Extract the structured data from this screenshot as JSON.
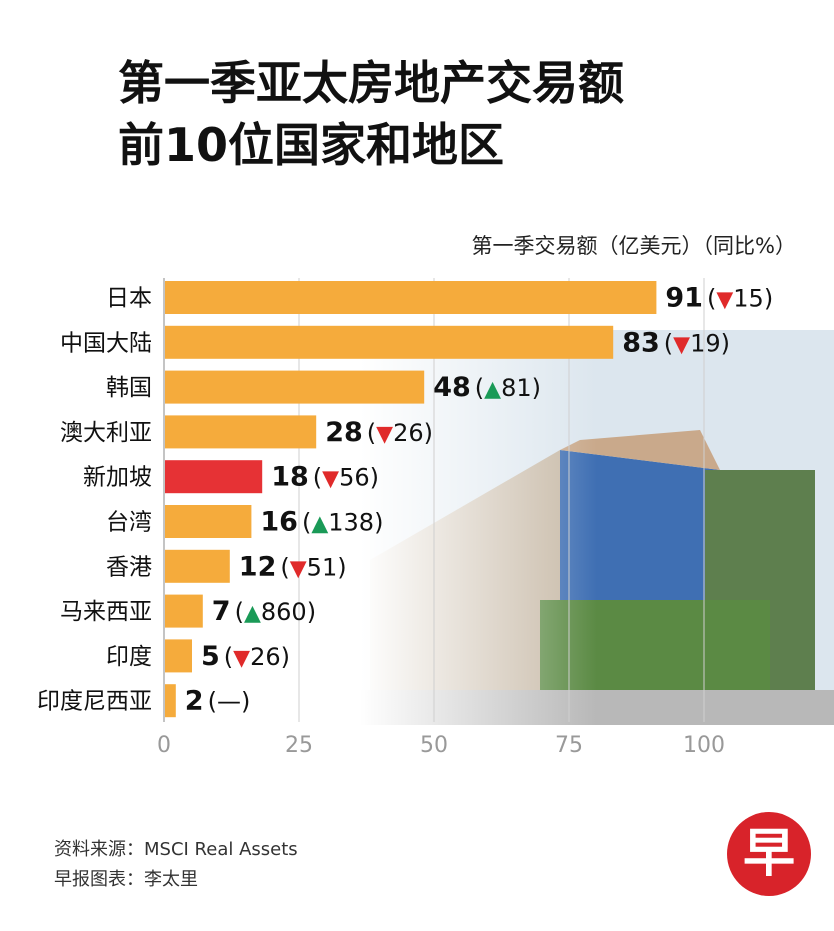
{
  "title_lines": [
    "第一季亚太房地产交易额",
    "前10位国家和地区"
  ],
  "subtitle": "第一季交易额（亿美元）（同比%）",
  "source": "资料来源：MSCI Real Assets",
  "credit": "早报图表：李太里",
  "logo_text": "早",
  "colors": {
    "bar": "#f5ab3c",
    "highlight": "#e63235",
    "up": "#1a9a57",
    "down": "#e02a2a"
  },
  "chart_data": {
    "type": "bar",
    "orientation": "horizontal",
    "title": "第一季亚太房地产交易额 前10位国家和地区",
    "unit": "第一季交易额（亿美元）（同比%）",
    "categories": [
      "日本",
      "中国大陆",
      "韩国",
      "澳大利亚",
      "新加坡",
      "台湾",
      "香港",
      "马来西亚",
      "印度",
      "印度尼西亚"
    ],
    "values": [
      91,
      83,
      48,
      28,
      18,
      16,
      12,
      7,
      5,
      2
    ],
    "yoy_direction": [
      "down",
      "down",
      "up",
      "down",
      "down",
      "up",
      "down",
      "up",
      "down",
      "none"
    ],
    "yoy_values": [
      "15",
      "19",
      "81",
      "26",
      "56",
      "138",
      "51",
      "860",
      "26",
      "—"
    ],
    "highlight": "新加坡",
    "xlim": [
      0,
      120
    ],
    "xticks": [
      0,
      25,
      50,
      75,
      100
    ],
    "grid": true
  }
}
